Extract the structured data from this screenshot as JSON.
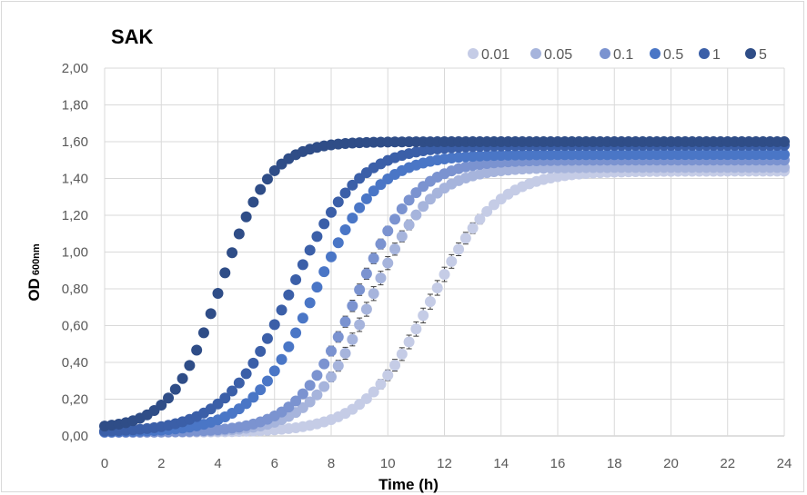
{
  "chart_data": {
    "type": "scatter",
    "title": "SAK",
    "xlabel": "Time (h)",
    "ylabel_main": "OD",
    "ylabel_sub": "600nm",
    "xlim": [
      0,
      24
    ],
    "ylim": [
      0,
      2
    ],
    "x_ticks": [
      "0",
      "2",
      "4",
      "6",
      "8",
      "10",
      "12",
      "14",
      "16",
      "18",
      "20",
      "22",
      "24"
    ],
    "y_ticks": [
      "0,00",
      "0,20",
      "0,40",
      "0,60",
      "0,80",
      "1,00",
      "1,20",
      "1,40",
      "1,60",
      "1,80",
      "2,00"
    ],
    "grid": true,
    "legend_position": "top-right",
    "x_step": 0.25,
    "series": [
      {
        "name": "0.01",
        "color": "#c5cce6",
        "base": 0.02,
        "top": 1.44,
        "midpoint": 11.5,
        "rate": 0.85,
        "error": 0.055
      },
      {
        "name": "0.05",
        "color": "#a6b4dc",
        "base": 0.02,
        "top": 1.46,
        "midpoint": 9.4,
        "rate": 0.95,
        "error": 0.045
      },
      {
        "name": "0.1",
        "color": "#7b93d0",
        "base": 0.02,
        "top": 1.5,
        "midpoint": 8.9,
        "rate": 0.95,
        "error": 0.035
      },
      {
        "name": "0.5",
        "color": "#4a76c6",
        "base": 0.02,
        "top": 1.53,
        "midpoint": 7.4,
        "rate": 0.9,
        "error": 0.01
      },
      {
        "name": "1",
        "color": "#3b5fa8",
        "base": 0.02,
        "top": 1.58,
        "midpoint": 6.6,
        "rate": 0.85,
        "error": 0.01
      },
      {
        "name": "5",
        "color": "#2f4d87",
        "base": 0.04,
        "top": 1.6,
        "midpoint": 4.1,
        "rate": 1.15,
        "error": 0.01
      }
    ]
  },
  "colors": {
    "grid": "#d9d9d9",
    "axis": "#bfbfbf",
    "error_bar": "#404040"
  }
}
